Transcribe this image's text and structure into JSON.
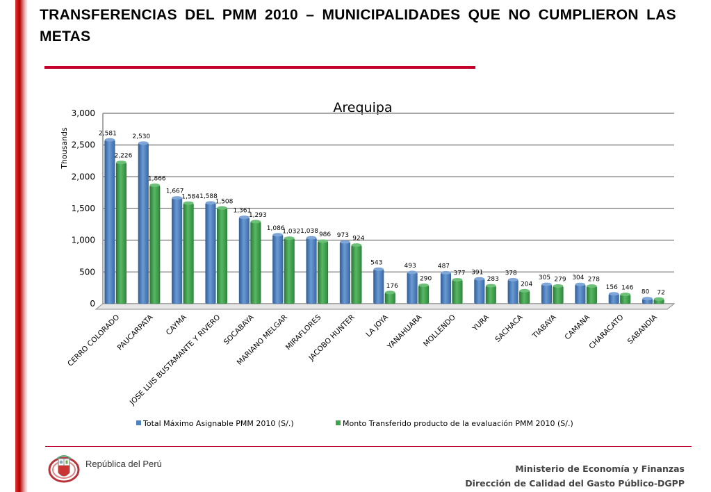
{
  "slide": {
    "title": "TRANSFERENCIAS DEL PMM 2010 – MUNICIPALIDADES QUE NO CUMPLIERON LAS METAS"
  },
  "colors": {
    "title_rule": "#c4002a",
    "series_total": "#4f81bd",
    "series_transferido": "#3fa34d"
  },
  "chart_data": {
    "type": "bar",
    "title": "Arequipa",
    "ylabel": "Thousands",
    "xlabel": "",
    "ylim": [
      0,
      3000
    ],
    "yticks": [
      "0",
      "500",
      "1,000",
      "1,500",
      "2,000",
      "2,500",
      "3,000"
    ],
    "ytick_values": [
      0,
      500,
      1000,
      1500,
      2000,
      2500,
      3000
    ],
    "grid": true,
    "legend_position": "bottom",
    "categories": [
      "CERRO COLORADO",
      "PAUCARPATA",
      "CAYMA",
      "JOSE LUIS BUSTAMANTE Y RIVERO",
      "SOCABAYA",
      "MARIANO MELGAR",
      "MIRAFLORES",
      "JACOBO HUNTER",
      "LA JOYA",
      "YANAHUARA",
      "MOLLENDO",
      "YURA",
      "SACHACA",
      "TIABAYA",
      "CAMANA",
      "CHARACATO",
      "SABANDIA"
    ],
    "series": [
      {
        "name": "Total Máximo Asignable PMM 2010 (S/.)",
        "color": "#4f81bd",
        "values": [
          2581,
          2530,
          1667,
          1588,
          1361,
          1086,
          1038,
          973,
          543,
          493,
          487,
          391,
          378,
          305,
          304,
          156,
          80
        ],
        "labels": [
          "2,581",
          "2,530",
          "1,667",
          "1,588",
          "1,361",
          "1,086",
          "1,038",
          "973",
          "543",
          "493",
          "487",
          "391",
          "378",
          "305",
          "304",
          "156",
          "80"
        ]
      },
      {
        "name": "Monto Transferido producto de la evaluación PMM 2010 (S/.)",
        "color": "#3fa34d",
        "values": [
          2226,
          1866,
          1584,
          1508,
          1293,
          1032,
          986,
          924,
          176,
          290,
          377,
          283,
          204,
          279,
          278,
          146,
          72
        ],
        "labels": [
          "2,226",
          "1,866",
          "1,584",
          "1,508",
          "1,293",
          "1,032",
          "986",
          "924",
          "176",
          "290",
          "377",
          "283",
          "204",
          "279",
          "278",
          "146",
          "72"
        ]
      }
    ]
  },
  "footer": {
    "country": "República del Perú",
    "ministry": "Ministerio de Economía y Finanzas",
    "direction": "Dirección de Calidad del Gasto Público-DGPP",
    "emblem_icon": "peru-coat-of-arms-icon"
  }
}
